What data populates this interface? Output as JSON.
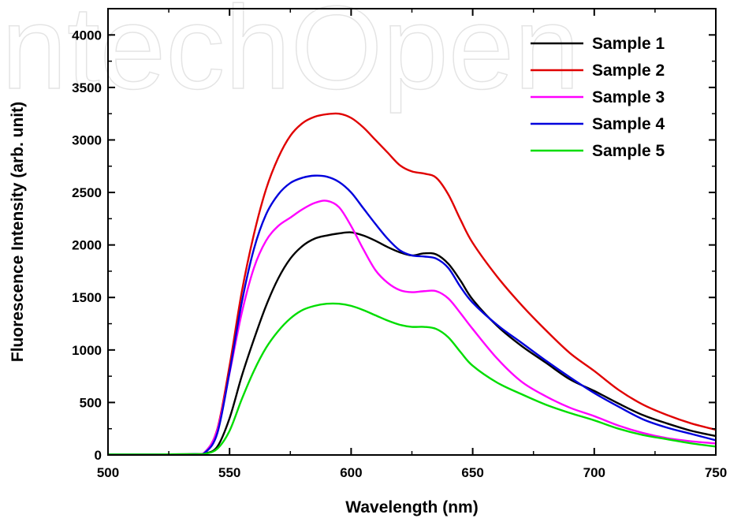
{
  "watermark": {
    "text": "IntechOpen"
  },
  "chart_data": {
    "type": "line",
    "title": "",
    "xlabel": "Wavelength (nm)",
    "ylabel": "Fluorescence Intensity (arb. unit)",
    "xlim": [
      500,
      750
    ],
    "ylim": [
      0,
      4250
    ],
    "xticks": [
      500,
      550,
      600,
      650,
      700,
      750
    ],
    "yticks": [
      0,
      500,
      1000,
      1500,
      2000,
      2500,
      3000,
      3500,
      4000
    ],
    "grid": false,
    "legend": "top-right",
    "x": [
      500,
      520,
      535,
      540,
      545,
      550,
      555,
      560,
      565,
      570,
      575,
      580,
      585,
      590,
      595,
      600,
      605,
      610,
      615,
      620,
      625,
      630,
      635,
      640,
      645,
      650,
      660,
      670,
      680,
      690,
      700,
      710,
      720,
      730,
      740,
      750
    ],
    "series": [
      {
        "name": "Sample 1",
        "color": "#000000",
        "values": [
          5,
          5,
          8,
          15,
          80,
          350,
          750,
          1100,
          1420,
          1680,
          1870,
          1990,
          2060,
          2090,
          2110,
          2120,
          2090,
          2040,
          1980,
          1930,
          1900,
          1920,
          1910,
          1820,
          1660,
          1480,
          1230,
          1040,
          880,
          720,
          610,
          490,
          380,
          300,
          230,
          180
        ]
      },
      {
        "name": "Sample 2",
        "color": "#e00000",
        "values": [
          5,
          5,
          8,
          30,
          250,
          850,
          1550,
          2100,
          2530,
          2830,
          3040,
          3160,
          3220,
          3245,
          3250,
          3210,
          3120,
          3000,
          2880,
          2760,
          2700,
          2680,
          2640,
          2480,
          2240,
          2020,
          1700,
          1430,
          1190,
          970,
          800,
          620,
          480,
          380,
          300,
          240
        ]
      },
      {
        "name": "Sample 3",
        "color": "#ff00ff",
        "values": [
          5,
          5,
          8,
          30,
          240,
          780,
          1350,
          1780,
          2040,
          2180,
          2260,
          2340,
          2400,
          2420,
          2360,
          2180,
          1960,
          1760,
          1640,
          1570,
          1550,
          1560,
          1560,
          1490,
          1350,
          1200,
          920,
          700,
          560,
          450,
          370,
          280,
          210,
          160,
          130,
          110
        ]
      },
      {
        "name": "Sample 4",
        "color": "#0000dd",
        "values": [
          5,
          5,
          8,
          25,
          210,
          790,
          1450,
          1960,
          2290,
          2480,
          2590,
          2640,
          2660,
          2650,
          2600,
          2500,
          2350,
          2200,
          2060,
          1950,
          1900,
          1890,
          1870,
          1780,
          1600,
          1450,
          1240,
          1070,
          900,
          740,
          590,
          460,
          340,
          260,
          200,
          140
        ]
      },
      {
        "name": "Sample 5",
        "color": "#00dd00",
        "values": [
          5,
          5,
          8,
          12,
          60,
          230,
          530,
          800,
          1020,
          1180,
          1300,
          1380,
          1420,
          1440,
          1440,
          1420,
          1380,
          1330,
          1280,
          1240,
          1220,
          1220,
          1200,
          1120,
          980,
          850,
          690,
          580,
          480,
          400,
          330,
          250,
          190,
          150,
          110,
          80
        ]
      }
    ]
  }
}
